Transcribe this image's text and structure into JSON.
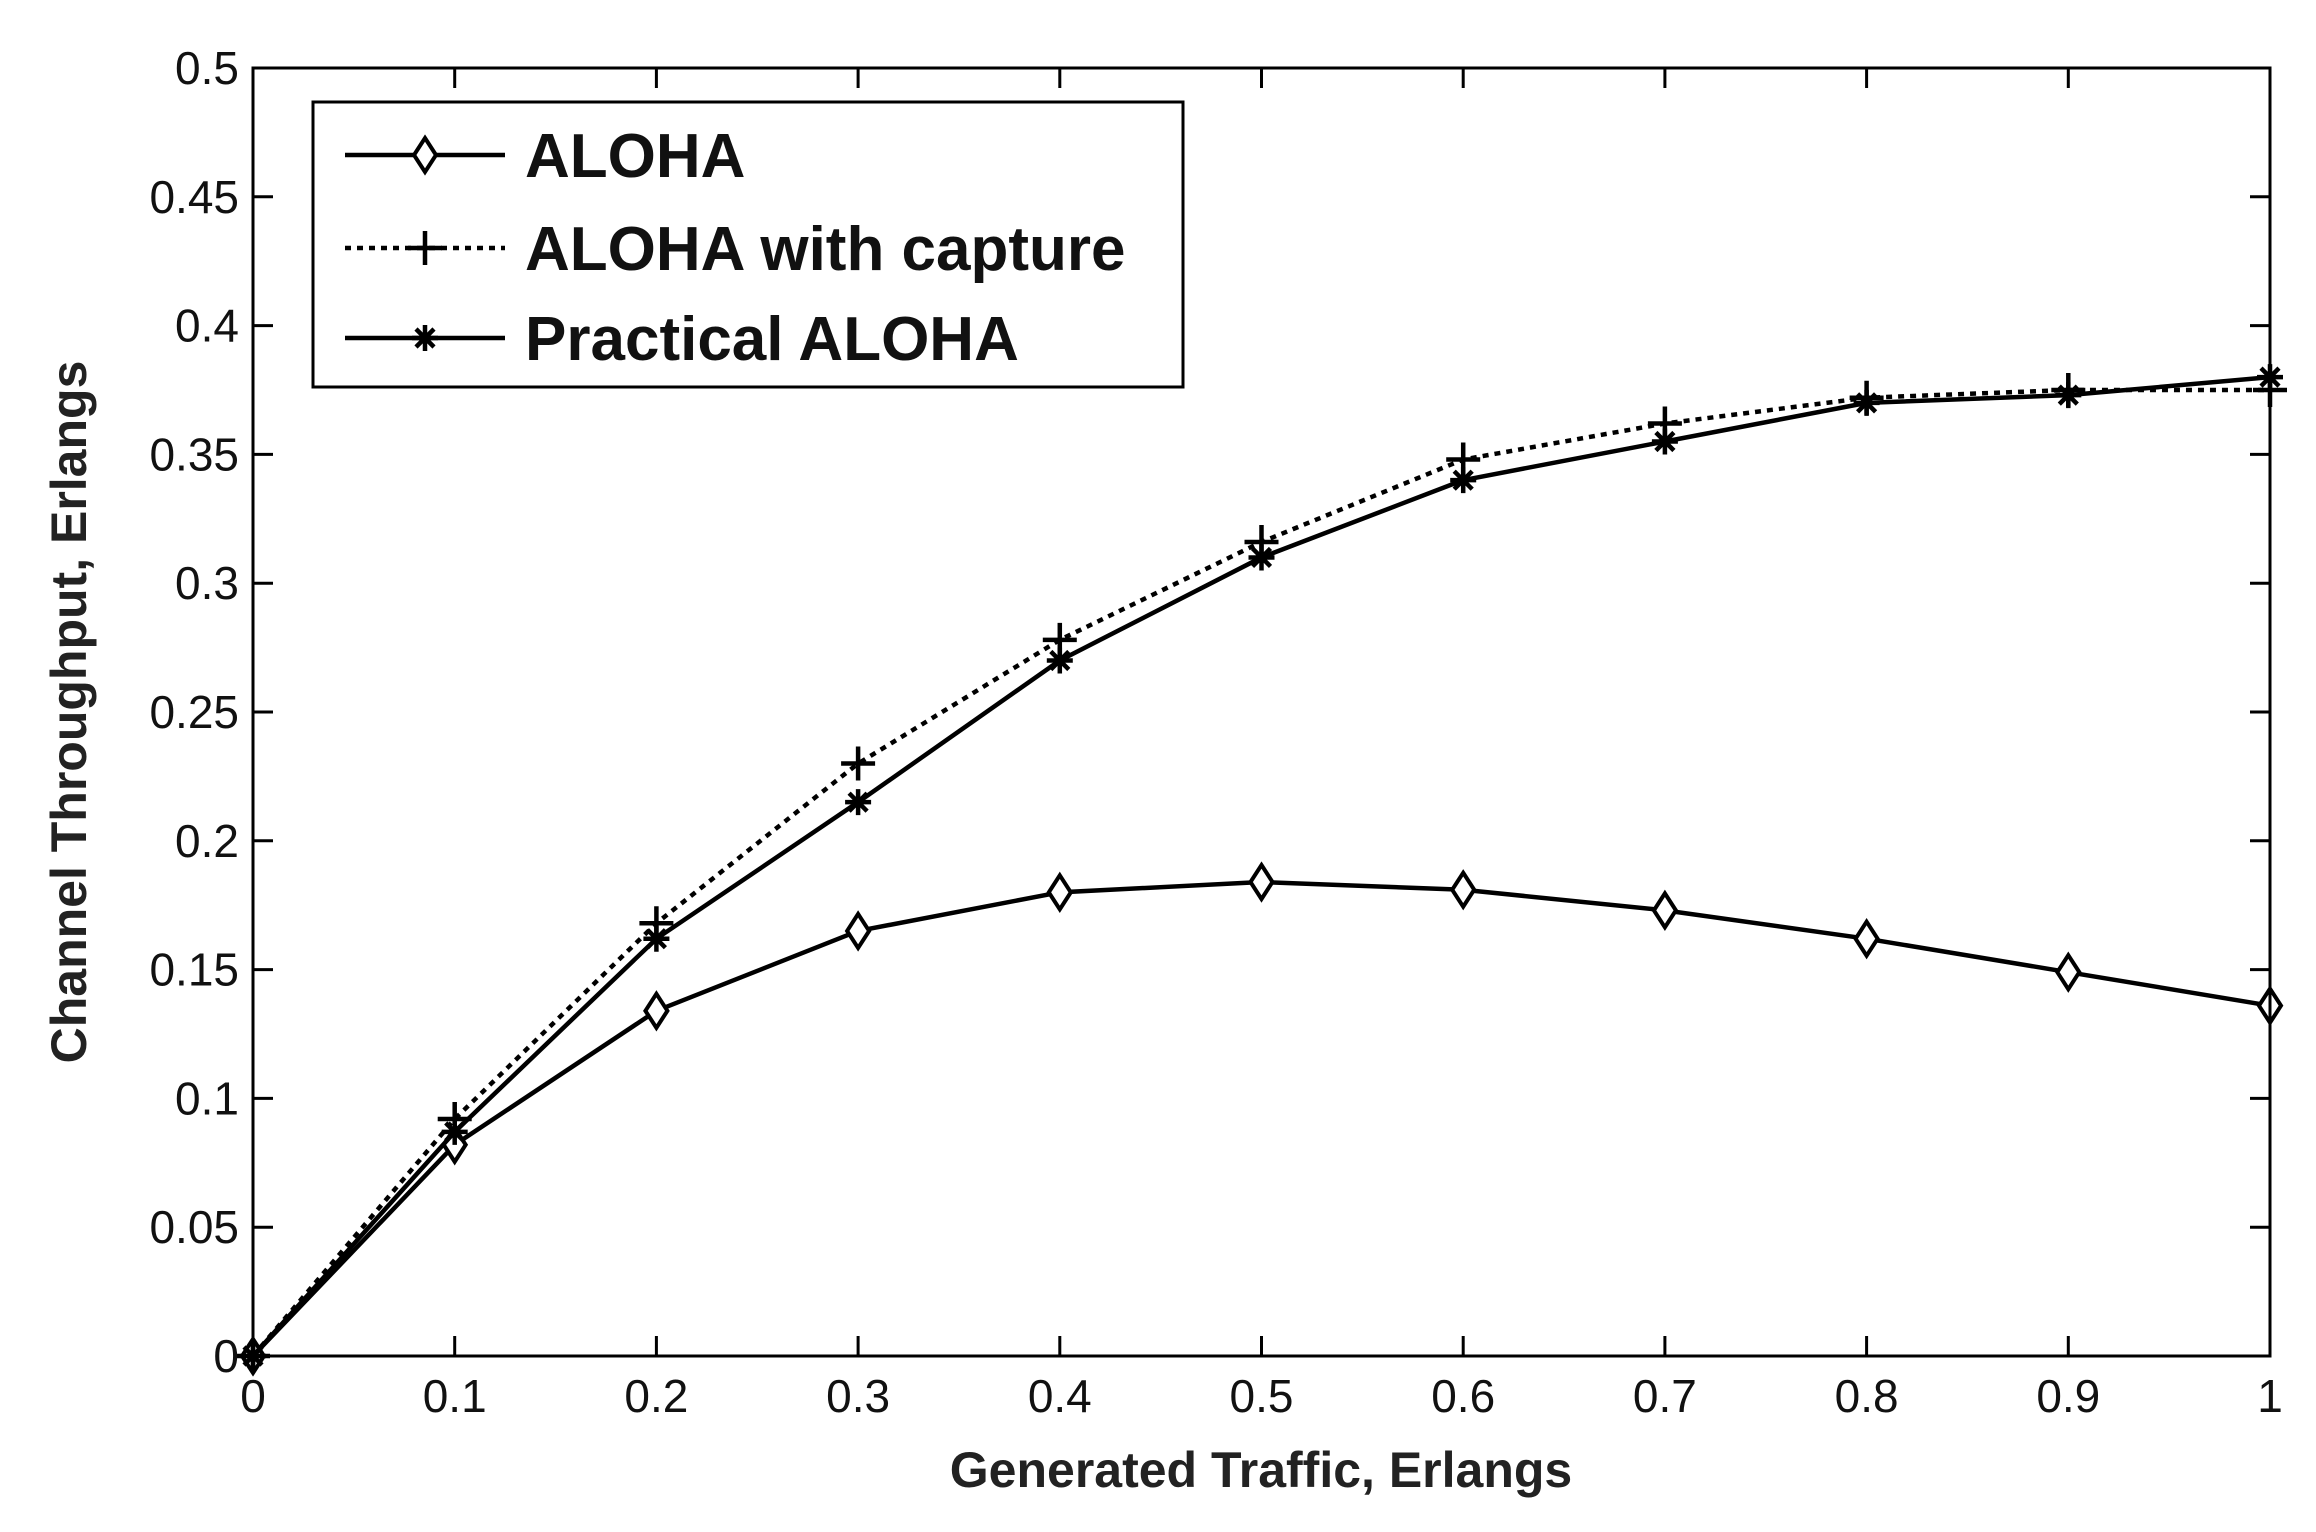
{
  "chart_data": {
    "type": "line",
    "title": "",
    "xlabel": "Generated Traffic, Erlangs",
    "ylabel": "Channel Throughput, Erlangs",
    "xlim": [
      0,
      1
    ],
    "ylim": [
      0,
      0.5
    ],
    "grid": false,
    "legend_position": "top-left",
    "x": [
      0,
      0.1,
      0.2,
      0.3,
      0.4,
      0.5,
      0.6,
      0.7,
      0.8,
      0.9,
      1.0
    ],
    "x_tick_labels": [
      "0",
      "0.1",
      "0.2",
      "0.3",
      "0.4",
      "0.5",
      "0.6",
      "0.7",
      "0.8",
      "0.9",
      "1"
    ],
    "y_ticks": [
      0,
      0.05,
      0.1,
      0.15,
      0.2,
      0.25,
      0.3,
      0.35,
      0.4,
      0.45,
      0.5
    ],
    "y_tick_labels": [
      "0",
      "0.05",
      "0.1",
      "0.15",
      "0.2",
      "0.25",
      "0.3",
      "0.35",
      "0.4",
      "0.45",
      "0.5"
    ],
    "series": [
      {
        "name": "ALOHA",
        "line_style": "solid",
        "marker": "diamond",
        "color": "#000000",
        "values": [
          0,
          0.082,
          0.134,
          0.165,
          0.18,
          0.184,
          0.181,
          0.173,
          0.162,
          0.149,
          0.136
        ]
      },
      {
        "name": "ALOHA with capture",
        "line_style": "dotted",
        "marker": "plus",
        "color": "#000000",
        "values": [
          0,
          0.092,
          0.168,
          0.23,
          0.278,
          0.316,
          0.348,
          0.362,
          0.372,
          0.375,
          0.375
        ]
      },
      {
        "name": "Practical ALOHA",
        "line_style": "solid",
        "marker": "star",
        "color": "#000000",
        "values": [
          0,
          0.087,
          0.162,
          0.215,
          0.27,
          0.31,
          0.34,
          0.355,
          0.37,
          0.373,
          0.38
        ]
      }
    ]
  }
}
